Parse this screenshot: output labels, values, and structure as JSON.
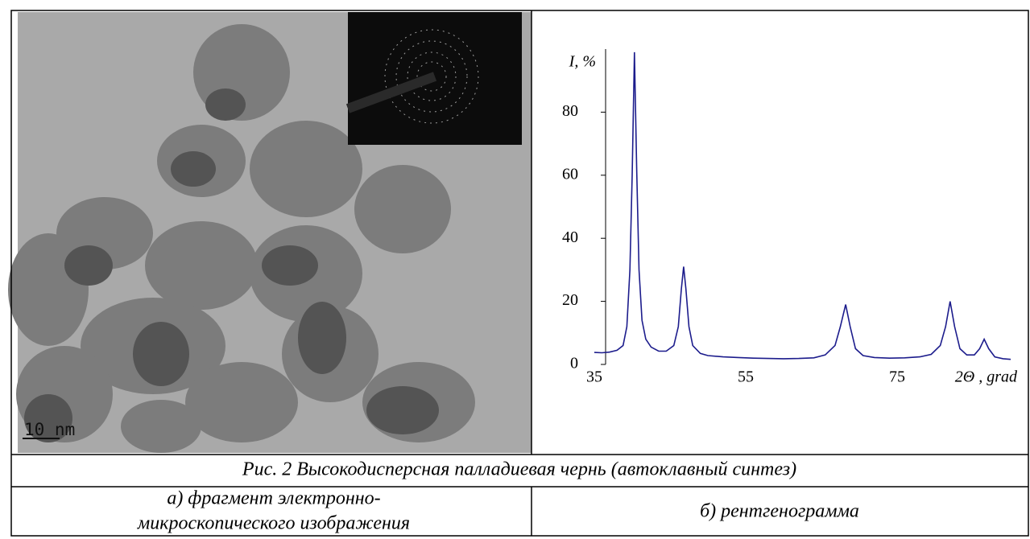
{
  "figure": {
    "scale_bar": "10 nm"
  },
  "chart_data": {
    "type": "line",
    "y_label": "I, %",
    "x_label": "2Θ , grad",
    "x": [
      35,
      36,
      37,
      38,
      38.8,
      39.3,
      39.7,
      40,
      40.3,
      40.6,
      40.9,
      41.3,
      41.8,
      42.5,
      43.5,
      44.5,
      45.5,
      46.1,
      46.5,
      46.8,
      47.1,
      47.5,
      48,
      49,
      50,
      52,
      54,
      56,
      58,
      60,
      62,
      64,
      65.5,
      66.8,
      67.5,
      68.2,
      68.8,
      69.5,
      70.5,
      72,
      74,
      76,
      78,
      79.5,
      80.7,
      81.4,
      82,
      82.6,
      83.3,
      84.2,
      85.2,
      85.9,
      86.5,
      87.1,
      87.9,
      89,
      90
    ],
    "series": [
      {
        "color": "#1c1c8c",
        "values": [
          3.8,
          3.7,
          3.9,
          4.5,
          6,
          12,
          30,
          60,
          99,
          62,
          30,
          14,
          8,
          5.5,
          4.2,
          4.2,
          6,
          12,
          24,
          31,
          24,
          12,
          6,
          3.5,
          2.8,
          2.4,
          2.2,
          2,
          1.9,
          1.8,
          1.9,
          2.1,
          3,
          6,
          12,
          19,
          12,
          5,
          2.8,
          2.2,
          2,
          2.1,
          2.4,
          3.2,
          6,
          12,
          20,
          12,
          5,
          3,
          3,
          5,
          8,
          5,
          2.4,
          1.8,
          1.6
        ]
      }
    ],
    "xlim": [
      35,
      90
    ],
    "ylim": [
      0,
      100
    ],
    "xticks": [
      35,
      55,
      75
    ],
    "yticks": [
      0,
      20,
      40,
      60,
      80
    ]
  },
  "caption": "Рис. 2 Высокодисперсная палладиевая чернь (автоклавный синтез)",
  "subcaptions": {
    "a": [
      "а) фрагмент электронно-",
      "микроскопического изображения"
    ],
    "b": "б) рентгенограмма"
  }
}
